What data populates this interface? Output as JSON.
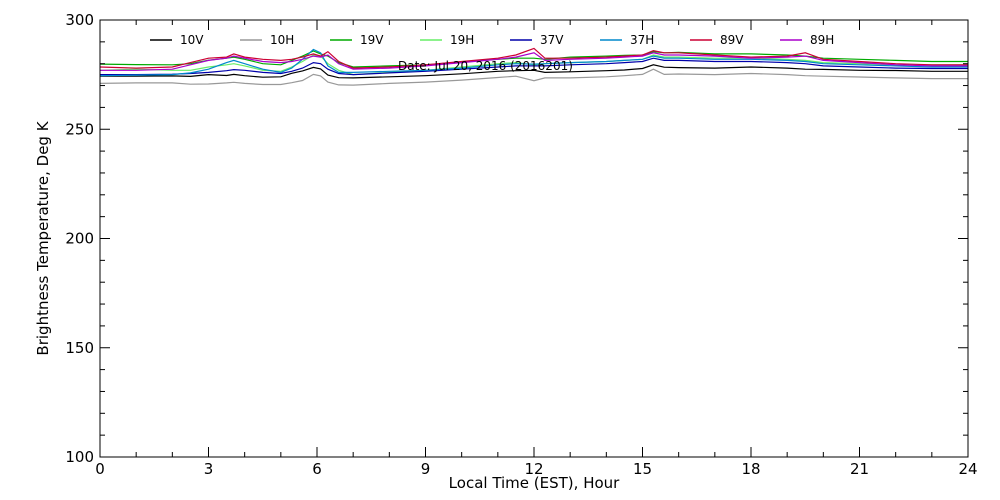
{
  "chart_data": {
    "type": "line",
    "xlabel": "Local Time (EST), Hour",
    "ylabel": "Brightness Temperature, Deg K",
    "annotation": "Date: Jul 20, 2016 (2016201)",
    "xlim": [
      0,
      24
    ],
    "ylim": [
      100,
      300
    ],
    "xticks": [
      0,
      3,
      6,
      9,
      12,
      15,
      18,
      21,
      24
    ],
    "yticks": [
      100,
      150,
      200,
      250,
      300
    ],
    "xtick_labels": [
      "0",
      "3",
      "6",
      "9",
      "12",
      "15",
      "18",
      "21",
      "24"
    ],
    "ytick_labels": [
      "100",
      "150",
      "200",
      "250",
      "300"
    ],
    "grid": false,
    "legend_position": "top",
    "x": [
      0,
      1,
      2,
      2.5,
      3,
      3.5,
      3.7,
      4,
      4.5,
      5,
      5.3,
      5.6,
      5.9,
      6.1,
      6.3,
      6.6,
      7,
      8,
      9,
      10,
      11,
      11.5,
      12,
      12.3,
      13,
      14,
      14.5,
      15,
      15.3,
      15.6,
      16,
      17,
      18,
      19,
      19.5,
      20,
      21,
      22,
      23,
      24
    ],
    "series": [
      {
        "name": "10V",
        "color": "#000000",
        "values": [
          274.3,
          274.3,
          274.4,
          274.2,
          275.0,
          274.6,
          275.1,
          274.5,
          273.8,
          274.0,
          275.6,
          276.7,
          278.3,
          277.6,
          274.8,
          273.6,
          273.5,
          274.0,
          274.5,
          275.4,
          276.5,
          276.8,
          277.0,
          276.0,
          276.3,
          276.8,
          277.1,
          277.8,
          279.5,
          278.4,
          278.2,
          278.0,
          278.5,
          278.0,
          277.5,
          277.4,
          277.0,
          276.9,
          276.5,
          276.5
        ]
      },
      {
        "name": "10H",
        "color": "#999999",
        "values": [
          271.0,
          271.2,
          271.2,
          270.6,
          270.7,
          271.2,
          271.5,
          271.0,
          270.5,
          270.5,
          271.3,
          272.3,
          275.1,
          274.4,
          271.6,
          270.3,
          270.2,
          271.0,
          271.6,
          272.5,
          273.7,
          274.3,
          272.2,
          273.5,
          273.5,
          274.0,
          274.5,
          275.1,
          277.5,
          275.1,
          275.3,
          275.0,
          275.5,
          275.0,
          274.5,
          274.3,
          273.9,
          273.5,
          273.2,
          273.2
        ]
      },
      {
        "name": "19V",
        "color": "#00aa00",
        "values": [
          279.8,
          279.6,
          279.5,
          280.0,
          281.6,
          282.5,
          283.0,
          282.0,
          280.0,
          279.5,
          281.5,
          283.5,
          285.8,
          284.5,
          283.5,
          280.5,
          278.5,
          279.0,
          279.5,
          280.8,
          282.0,
          282.5,
          282.5,
          282.0,
          283.0,
          283.5,
          283.8,
          284.0,
          285.5,
          285.0,
          285.2,
          284.5,
          284.5,
          284.0,
          283.5,
          282.5,
          282.0,
          281.5,
          281.0,
          281.0
        ]
      },
      {
        "name": "19H",
        "color": "#66ee66",
        "values": [
          277.0,
          277.5,
          277.0,
          277.0,
          278.5,
          279.5,
          280.0,
          279.0,
          277.0,
          276.5,
          278.5,
          281.0,
          284.0,
          283.5,
          280.0,
          277.0,
          275.0,
          276.0,
          277.0,
          278.5,
          280.0,
          280.5,
          279.5,
          280.0,
          280.5,
          281.0,
          281.5,
          282.0,
          284.0,
          283.0,
          283.0,
          282.5,
          282.5,
          282.0,
          281.5,
          280.5,
          280.0,
          279.5,
          279.5,
          279.5
        ]
      },
      {
        "name": "37V",
        "color": "#0000aa",
        "values": [
          275.0,
          275.0,
          275.2,
          275.5,
          276.0,
          276.8,
          277.3,
          277.0,
          276.0,
          275.5,
          276.5,
          278.0,
          280.5,
          280.0,
          277.5,
          275.5,
          275.0,
          275.8,
          276.5,
          277.5,
          278.5,
          279.0,
          279.0,
          279.0,
          279.5,
          280.0,
          280.5,
          281.0,
          282.5,
          281.5,
          281.5,
          281.0,
          281.0,
          280.5,
          280.0,
          279.0,
          278.5,
          278.0,
          277.8,
          277.8
        ]
      },
      {
        "name": "37H",
        "color": "#0088cc",
        "values": [
          274.5,
          274.8,
          275.0,
          275.8,
          277.5,
          280.5,
          281.5,
          280.0,
          277.5,
          276.0,
          278.0,
          282.0,
          286.5,
          285.0,
          279.0,
          276.0,
          276.0,
          276.5,
          277.0,
          278.0,
          279.5,
          280.0,
          279.8,
          280.0,
          280.5,
          281.0,
          281.5,
          282.0,
          283.5,
          282.5,
          282.5,
          282.0,
          282.0,
          281.5,
          281.0,
          280.0,
          279.5,
          279.0,
          278.5,
          278.5
        ]
      },
      {
        "name": "89V",
        "color": "#cc0033",
        "values": [
          278.5,
          278.0,
          278.5,
          280.5,
          282.5,
          283.0,
          284.5,
          283.0,
          282.0,
          281.5,
          282.0,
          283.0,
          284.5,
          283.5,
          285.5,
          281.0,
          278.0,
          278.5,
          279.5,
          281.0,
          282.5,
          284.0,
          287.0,
          282.5,
          282.5,
          283.0,
          283.5,
          284.0,
          286.0,
          285.0,
          285.0,
          284.0,
          283.0,
          283.5,
          285.0,
          282.0,
          281.0,
          280.0,
          279.5,
          279.5
        ]
      },
      {
        "name": "89H",
        "color": "#aa00cc",
        "values": [
          277.0,
          277.0,
          277.5,
          279.5,
          281.5,
          282.5,
          283.5,
          282.5,
          281.0,
          280.5,
          281.0,
          282.0,
          283.5,
          283.0,
          284.0,
          280.0,
          277.5,
          278.0,
          279.0,
          280.5,
          282.0,
          283.0,
          285.0,
          281.5,
          282.0,
          282.5,
          283.0,
          283.5,
          285.0,
          284.0,
          284.0,
          283.5,
          282.5,
          283.0,
          283.5,
          281.5,
          280.5,
          279.5,
          279.0,
          279.0
        ]
      }
    ]
  }
}
